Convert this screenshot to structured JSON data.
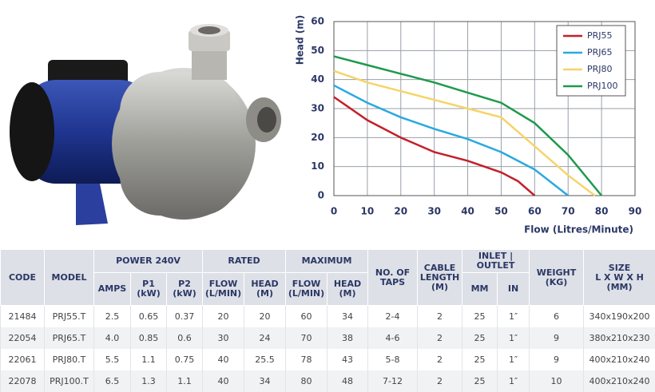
{
  "chart_data": {
    "type": "line",
    "ylabel": "Head (m)",
    "xlabel": "Flow (Litres/Minute)",
    "xlim": [
      0,
      90
    ],
    "xticks": [
      0,
      10,
      20,
      30,
      40,
      50,
      60,
      70,
      80,
      90
    ],
    "ylim": [
      0,
      60
    ],
    "yticks": [
      0,
      10,
      20,
      30,
      40,
      50,
      60
    ],
    "grid": true,
    "legend": "upper-right",
    "series": [
      {
        "name": "PRJ55",
        "color": "#c3202b",
        "x": [
          0,
          10,
          20,
          30,
          40,
          50,
          55,
          60
        ],
        "values": [
          34,
          26,
          20,
          15,
          12,
          8,
          5,
          0
        ]
      },
      {
        "name": "PRJ65",
        "color": "#2aa9df",
        "x": [
          0,
          10,
          20,
          30,
          40,
          50,
          60,
          70
        ],
        "values": [
          38,
          32,
          27,
          23,
          19.5,
          15,
          9,
          0
        ]
      },
      {
        "name": "PRJ80",
        "color": "#f6d46a",
        "x": [
          0,
          10,
          20,
          30,
          40,
          50,
          60,
          70,
          78
        ],
        "values": [
          43,
          39,
          36,
          33,
          30,
          27,
          17,
          7,
          0
        ]
      },
      {
        "name": "PRJ100",
        "color": "#1e9a4c",
        "x": [
          0,
          10,
          20,
          30,
          40,
          50,
          60,
          70,
          80
        ],
        "values": [
          48,
          45,
          42,
          39,
          35.5,
          32,
          25,
          14,
          0
        ]
      }
    ]
  },
  "table": {
    "groups": [
      "CODE",
      "MODEL",
      "POWER 240V",
      "RATED",
      "MAXIMUM",
      "NO. OF\nTAPS",
      "CABLE\nLENGTH\n(M)",
      "INLET |\nOUTLET",
      "WEIGHT\n(KG)",
      "SIZE\nL X W X H\n(MM)"
    ],
    "subheaders": [
      "AMPS",
      "P1\n(kW)",
      "P2\n(kW)",
      "FLOW\n(L/MIN)",
      "HEAD\n(M)",
      "FLOW\n(L/MIN)",
      "HEAD\n(M)",
      "MM",
      "IN"
    ],
    "rows": [
      [
        "21484",
        "PRJ55.T",
        "2.5",
        "0.65",
        "0.37",
        "20",
        "20",
        "60",
        "34",
        "2-4",
        "2",
        "25",
        "1″",
        "6",
        "340x190x200"
      ],
      [
        "22054",
        "PRJ65.T",
        "4.0",
        "0.85",
        "0.6",
        "30",
        "24",
        "70",
        "38",
        "4-6",
        "2",
        "25",
        "1″",
        "9",
        "380x210x230"
      ],
      [
        "22061",
        "PRJ80.T",
        "5.5",
        "1.1",
        "0.75",
        "40",
        "25.5",
        "78",
        "43",
        "5-8",
        "2",
        "25",
        "1″",
        "9",
        "400x210x240"
      ],
      [
        "22078",
        "PRJ100.T",
        "6.5",
        "1.3",
        "1.1",
        "40",
        "34",
        "80",
        "48",
        "7-12",
        "2",
        "25",
        "1″",
        "10",
        "400x210x240"
      ]
    ]
  }
}
